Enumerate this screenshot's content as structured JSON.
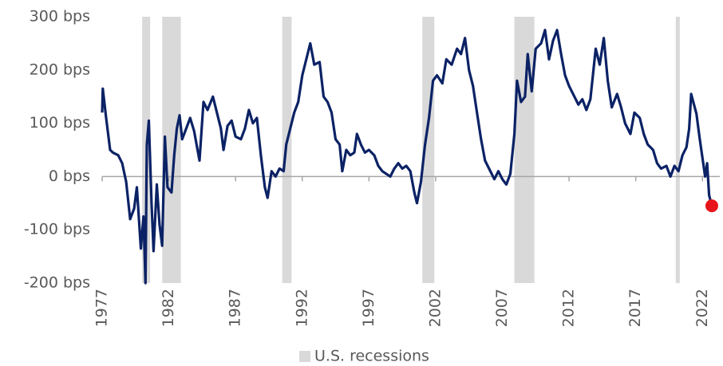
{
  "chart_data": {
    "type": "line",
    "color": "#0b2265",
    "end_marker_color": "#e8141b",
    "zero_line_color": "#a6a6a6",
    "xlim": [
      1977,
      2023.3
    ],
    "xticks": [
      1977,
      1982,
      1987,
      1992,
      1997,
      2002,
      2007,
      2012,
      2017,
      2022
    ],
    "ylim": [
      -200,
      300
    ],
    "yticks": [
      {
        "value": 300,
        "label": "300 bps"
      },
      {
        "value": 200,
        "label": "200 bps"
      },
      {
        "value": 100,
        "label": "100 bps"
      },
      {
        "value": 0,
        "label": "0 bps"
      },
      {
        "value": -100,
        "label": "-100 bps"
      },
      {
        "value": -200,
        "label": "-200 bps"
      }
    ],
    "recessions": {
      "name": "U.S. recessions",
      "color": "#d9d9d9",
      "periods": [
        [
          1980.0,
          1980.6
        ],
        [
          1981.5,
          1982.9
        ],
        [
          1990.5,
          1991.2
        ],
        [
          2001.0,
          2001.9
        ],
        [
          2007.9,
          2009.4
        ],
        [
          2020.0,
          2020.3
        ]
      ]
    },
    "x": [
      1977.0,
      1977.05,
      1977.3,
      1977.6,
      1977.8,
      1978.2,
      1978.5,
      1978.8,
      1979.1,
      1979.4,
      1979.6,
      1979.9,
      1980.1,
      1980.25,
      1980.35,
      1980.5,
      1980.7,
      1980.85,
      1981.1,
      1981.3,
      1981.5,
      1981.7,
      1981.9,
      1982.2,
      1982.4,
      1982.6,
      1982.8,
      1983.0,
      1983.3,
      1983.6,
      1983.9,
      1984.3,
      1984.6,
      1984.9,
      1985.3,
      1985.6,
      1985.9,
      1986.1,
      1986.4,
      1986.7,
      1987.0,
      1987.4,
      1987.7,
      1988.0,
      1988.3,
      1988.6,
      1988.9,
      1989.2,
      1989.4,
      1989.7,
      1990.0,
      1990.3,
      1990.6,
      1990.8,
      1991.0,
      1991.4,
      1991.7,
      1992.0,
      1992.3,
      1992.6,
      1992.9,
      1993.3,
      1993.6,
      1993.9,
      1994.2,
      1994.5,
      1994.8,
      1995.0,
      1995.3,
      1995.6,
      1995.9,
      1996.1,
      1996.4,
      1996.7,
      1997.0,
      1997.4,
      1997.7,
      1998.0,
      1998.3,
      1998.6,
      1998.9,
      1999.2,
      1999.5,
      1999.8,
      2000.1,
      2000.4,
      2000.6,
      2000.9,
      2001.2,
      2001.5,
      2001.8,
      2002.1,
      2002.5,
      2002.8,
      2003.2,
      2003.6,
      2003.9,
      2004.2,
      2004.5,
      2004.8,
      2005.1,
      2005.4,
      2005.7,
      2006.0,
      2006.4,
      2006.7,
      2007.0,
      2007.3,
      2007.6,
      2007.9,
      2008.1,
      2008.4,
      2008.7,
      2008.9,
      2009.2,
      2009.5,
      2009.9,
      2010.2,
      2010.5,
      2010.8,
      2011.1,
      2011.4,
      2011.7,
      2012.0,
      2012.4,
      2012.7,
      2013.0,
      2013.3,
      2013.6,
      2014.0,
      2014.3,
      2014.6,
      2014.9,
      2015.2,
      2015.6,
      2015.9,
      2016.2,
      2016.6,
      2016.9,
      2017.3,
      2017.6,
      2017.9,
      2018.3,
      2018.6,
      2018.9,
      2019.3,
      2019.6,
      2019.9,
      2020.2,
      2020.5,
      2020.8,
      2021.0,
      2021.15,
      2021.55,
      2021.8,
      2022.2,
      2022.35,
      2022.5,
      2022.7
    ],
    "values": [
      120,
      165,
      110,
      50,
      45,
      40,
      25,
      -10,
      -80,
      -60,
      -20,
      -135,
      -75,
      -200,
      60,
      105,
      -50,
      -140,
      -15,
      -90,
      -130,
      75,
      -20,
      -30,
      40,
      90,
      115,
      70,
      90,
      110,
      85,
      30,
      140,
      125,
      150,
      120,
      90,
      50,
      95,
      105,
      75,
      70,
      90,
      125,
      100,
      110,
      40,
      -20,
      -40,
      10,
      0,
      15,
      10,
      60,
      80,
      120,
      140,
      190,
      220,
      250,
      210,
      215,
      150,
      140,
      120,
      70,
      60,
      10,
      50,
      40,
      45,
      80,
      60,
      45,
      50,
      40,
      20,
      10,
      5,
      0,
      15,
      25,
      15,
      20,
      10,
      -30,
      -50,
      -10,
      60,
      110,
      180,
      190,
      175,
      220,
      210,
      240,
      230,
      260,
      200,
      170,
      120,
      70,
      30,
      15,
      -5,
      10,
      -5,
      -15,
      5,
      80,
      180,
      140,
      150,
      230,
      160,
      240,
      250,
      275,
      220,
      255,
      275,
      230,
      190,
      170,
      150,
      135,
      145,
      125,
      145,
      240,
      210,
      260,
      180,
      130,
      155,
      130,
      100,
      80,
      120,
      110,
      80,
      60,
      50,
      25,
      15,
      20,
      0,
      20,
      10,
      40,
      55,
      90,
      155,
      118,
      70,
      0,
      25,
      -35,
      -55
    ]
  }
}
